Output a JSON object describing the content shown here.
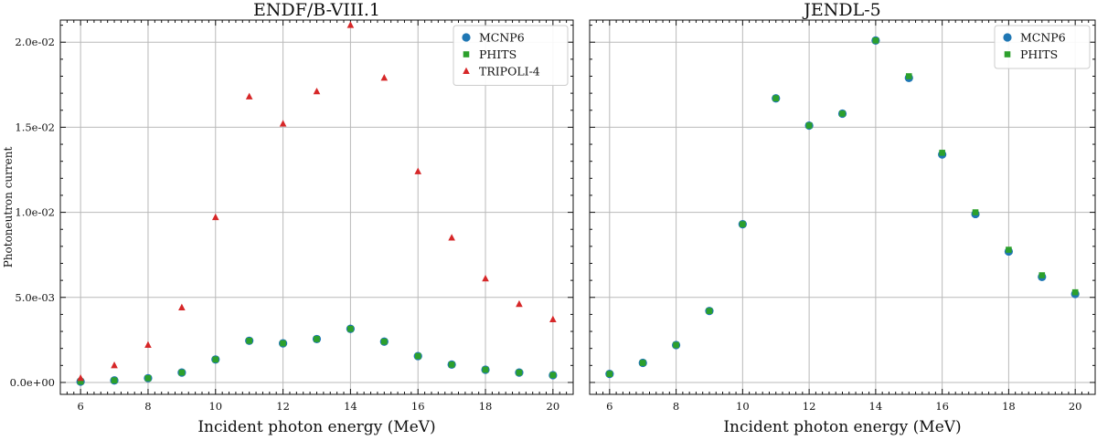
{
  "chart_data": [
    {
      "type": "scatter",
      "title": "ENDF/B-VIII.1",
      "xlabel": "Incident photon energy (MeV)",
      "ylabel": "Photoneutron current",
      "xlim": [
        5.4,
        20.6
      ],
      "ylim": [
        -0.0007,
        0.0213
      ],
      "xticks": [
        6,
        8,
        10,
        12,
        14,
        16,
        18,
        20
      ],
      "yticks": [
        0,
        0.005,
        0.01,
        0.015,
        0.02
      ],
      "ytick_labels": [
        "0.0e+00",
        "5.0e-03",
        "1.0e-02",
        "1.5e-02",
        "2.0e-02"
      ],
      "legend": "top-right",
      "grid": true,
      "x": [
        6,
        7,
        8,
        9,
        10,
        11,
        12,
        13,
        14,
        15,
        16,
        17,
        18,
        19,
        20
      ],
      "series": [
        {
          "name": "MCNP6",
          "marker": "circle",
          "color": "#1f77b4",
          "values": [
            5e-05,
            0.00012,
            0.00025,
            0.00058,
            0.00135,
            0.00245,
            0.0023,
            0.00255,
            0.00315,
            0.0024,
            0.00155,
            0.00105,
            0.00075,
            0.00058,
            0.00043
          ]
        },
        {
          "name": "PHITS",
          "marker": "square",
          "color": "#2ca02c",
          "values": [
            5e-05,
            0.00012,
            0.00025,
            0.00058,
            0.00135,
            0.00245,
            0.0023,
            0.00255,
            0.00315,
            0.0024,
            0.00155,
            0.00105,
            0.00075,
            0.00058,
            0.00043
          ]
        },
        {
          "name": "TRIPOLI-4",
          "marker": "triangle",
          "color": "#d62728",
          "values": [
            0.00025,
            0.001,
            0.0022,
            0.0044,
            0.0097,
            0.0168,
            0.0152,
            0.0171,
            0.021,
            0.0179,
            0.0124,
            0.0085,
            0.0061,
            0.0046,
            0.0037
          ]
        }
      ]
    },
    {
      "type": "scatter",
      "title": "JENDL-5",
      "xlabel": "Incident photon energy (MeV)",
      "ylabel": "",
      "xlim": [
        5.4,
        20.6
      ],
      "ylim": [
        -0.0007,
        0.0213
      ],
      "xticks": [
        6,
        8,
        10,
        12,
        14,
        16,
        18,
        20
      ],
      "yticks": [
        0,
        0.005,
        0.01,
        0.015,
        0.02
      ],
      "legend": "top-right",
      "grid": true,
      "x": [
        6,
        7,
        8,
        9,
        10,
        11,
        12,
        13,
        14,
        15,
        16,
        17,
        18,
        19,
        20
      ],
      "series": [
        {
          "name": "MCNP6",
          "marker": "circle",
          "color": "#1f77b4",
          "values": [
            0.0005,
            0.00115,
            0.0022,
            0.0042,
            0.0093,
            0.0167,
            0.0151,
            0.0158,
            0.0201,
            0.0179,
            0.0134,
            0.0099,
            0.0077,
            0.0062,
            0.0052
          ]
        },
        {
          "name": "PHITS",
          "marker": "square",
          "color": "#2ca02c",
          "values": [
            0.0005,
            0.00115,
            0.0022,
            0.0042,
            0.0093,
            0.0167,
            0.0151,
            0.0158,
            0.0201,
            0.018,
            0.0135,
            0.01,
            0.0078,
            0.0063,
            0.0053
          ]
        }
      ]
    }
  ]
}
